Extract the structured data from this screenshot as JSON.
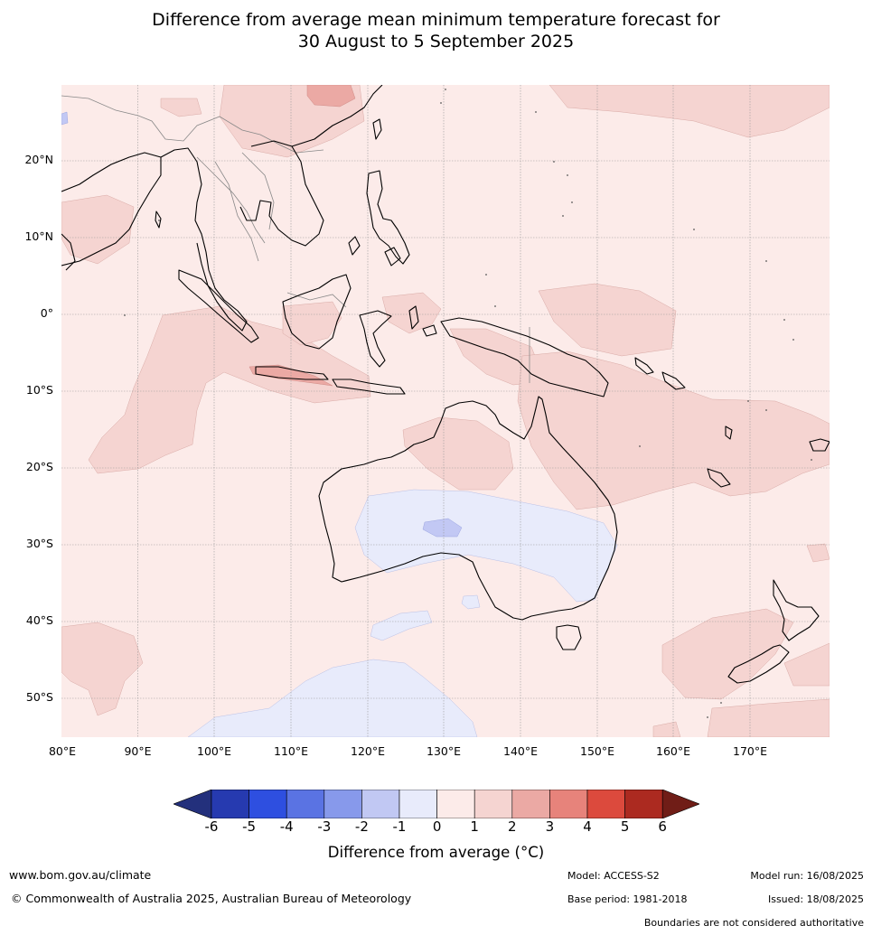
{
  "title": {
    "line1": "Difference from average mean minimum temperature forecast for",
    "line2": "30 August to 5 September 2025"
  },
  "map": {
    "lat_labels": [
      "20°N",
      "10°N",
      "0°",
      "10°S",
      "20°S",
      "30°S",
      "40°S",
      "50°S"
    ],
    "lon_labels": [
      "80°E",
      "90°E",
      "100°E",
      "110°E",
      "120°E",
      "130°E",
      "140°E",
      "150°E",
      "160°E",
      "170°E"
    ],
    "colors": {
      "ocean_base": "#fcebe9",
      "warm_1_2": "#f5d4d1",
      "warm_2_3": "#eba9a4",
      "cool_0_1": "#e8ebfb",
      "cool_1_2": "#c2c8f4",
      "coast": "#000000",
      "border": "#888888",
      "grid": "#9a9a9a"
    }
  },
  "colorbar": {
    "ticks": [
      "-6",
      "-5",
      "-4",
      "-3",
      "-2",
      "-1",
      "0",
      "1",
      "2",
      "3",
      "4",
      "5",
      "6"
    ],
    "colors": [
      "#23307c",
      "#263ab0",
      "#2e4fe0",
      "#5a73e3",
      "#8799eb",
      "#c1c8f3",
      "#e8ebfb",
      "#fcebe9",
      "#f5d4d1",
      "#eba9a4",
      "#e7837b",
      "#dc4a3d",
      "#ac2a20",
      "#701d17"
    ],
    "label": "Difference from average (°C)"
  },
  "footer": {
    "url": "www.bom.gov.au/climate",
    "copyright": "© Commonwealth of Australia 2025, Australian Bureau of Meteorology",
    "model": "Model: ACCESS-S2",
    "base_period": "Base period: 1981-2018",
    "model_run": "Model run: 16/08/2025",
    "issued": "Issued: 18/08/2025",
    "disclaimer": "Boundaries are not considered authoritative"
  }
}
